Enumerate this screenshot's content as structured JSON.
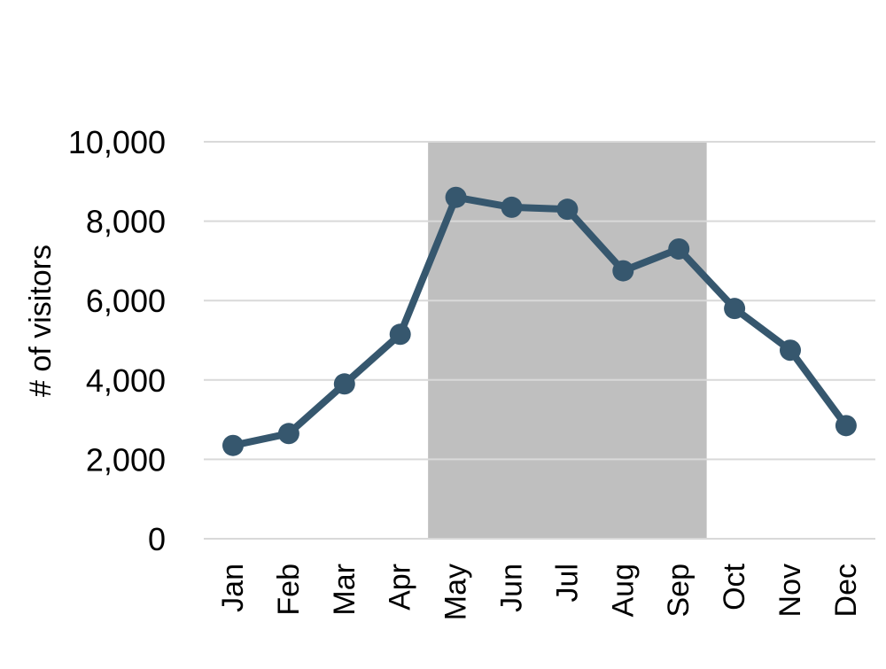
{
  "chart_data": {
    "type": "line",
    "title": "",
    "xlabel": "",
    "ylabel": "# of visitors",
    "categories": [
      "Jan",
      "Feb",
      "Mar",
      "Apr",
      "May",
      "Jun",
      "Jul",
      "Aug",
      "Sep",
      "Oct",
      "Nov",
      "Dec"
    ],
    "series": [
      {
        "values": [
          2350,
          2650,
          3900,
          5150,
          8600,
          8350,
          8300,
          6750,
          7300,
          5800,
          4750,
          2850
        ]
      }
    ],
    "ylim": [
      0,
      10000
    ],
    "yticks": [
      0,
      2000,
      4000,
      6000,
      8000,
      10000
    ],
    "ytick_labels": [
      "0",
      "2,000",
      "4,000",
      "6,000",
      "8,000",
      "10,000"
    ],
    "grid": "horizontal",
    "highlight_band": {
      "from": "May",
      "to": "Sep"
    },
    "colors": {
      "line": "#36576e",
      "band": "#bfbfbf",
      "grid": "#d9d9d9"
    }
  }
}
